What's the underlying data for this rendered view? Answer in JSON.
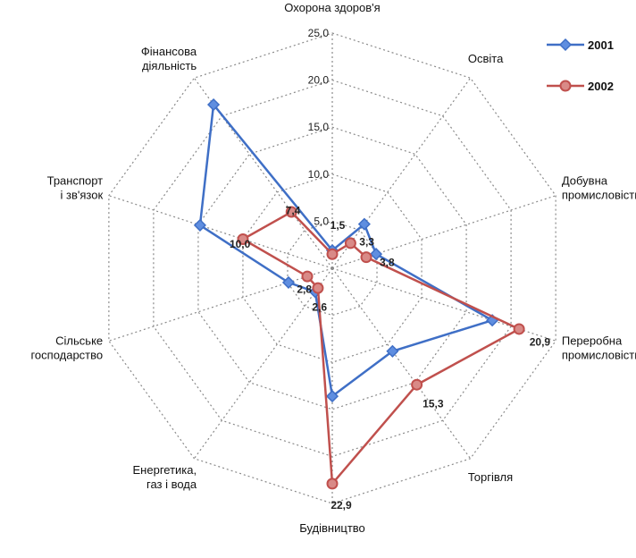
{
  "chart_data": {
    "type": "radar",
    "categories": [
      "Охорона здоров'я",
      "Освіта",
      "Добувна промисловість",
      "Переробна промисловість",
      "Торгівля",
      "Будівництво",
      "Енергетика, газ і вода",
      "Сільське господарство",
      "Транспорт і зв'язок",
      "Фінансова діяльність"
    ],
    "series": [
      {
        "name": "2001",
        "color": "#3f6fc6",
        "marker": "diamond",
        "values": [
          1.9,
          5.8,
          4.9,
          17.9,
          10.9,
          13.6,
          3.1,
          4.9,
          14.8,
          21.5
        ]
      },
      {
        "name": "2002",
        "color": "#c0504d",
        "marker": "circle",
        "values": [
          1.5,
          3.3,
          3.8,
          20.9,
          15.3,
          22.9,
          2.6,
          2.8,
          10.0,
          7.4
        ]
      }
    ],
    "data_labels": [
      {
        "series": "2002",
        "index": 0,
        "text": "1,5"
      },
      {
        "series": "2002",
        "index": 1,
        "text": "3,3"
      },
      {
        "series": "2002",
        "index": 2,
        "text": "3,8"
      },
      {
        "series": "2002",
        "index": 3,
        "text": "20,9"
      },
      {
        "series": "2002",
        "index": 4,
        "text": "15,3"
      },
      {
        "series": "2002",
        "index": 5,
        "text": "22,9"
      },
      {
        "series": "2002",
        "index": 6,
        "text": "2,6"
      },
      {
        "series": "2002",
        "index": 7,
        "text": "2,8"
      },
      {
        "series": "2002",
        "index": 8,
        "text": "10,0"
      },
      {
        "series": "2002",
        "index": 9,
        "text": "7,4"
      }
    ],
    "radial_ticks": [
      "5,0",
      "10,0",
      "15,0",
      "20,0",
      "25,0"
    ],
    "radial_tick_values": [
      5,
      10,
      15,
      20,
      25
    ],
    "rmax": 25,
    "grid": true,
    "legend_position": "top-right"
  }
}
